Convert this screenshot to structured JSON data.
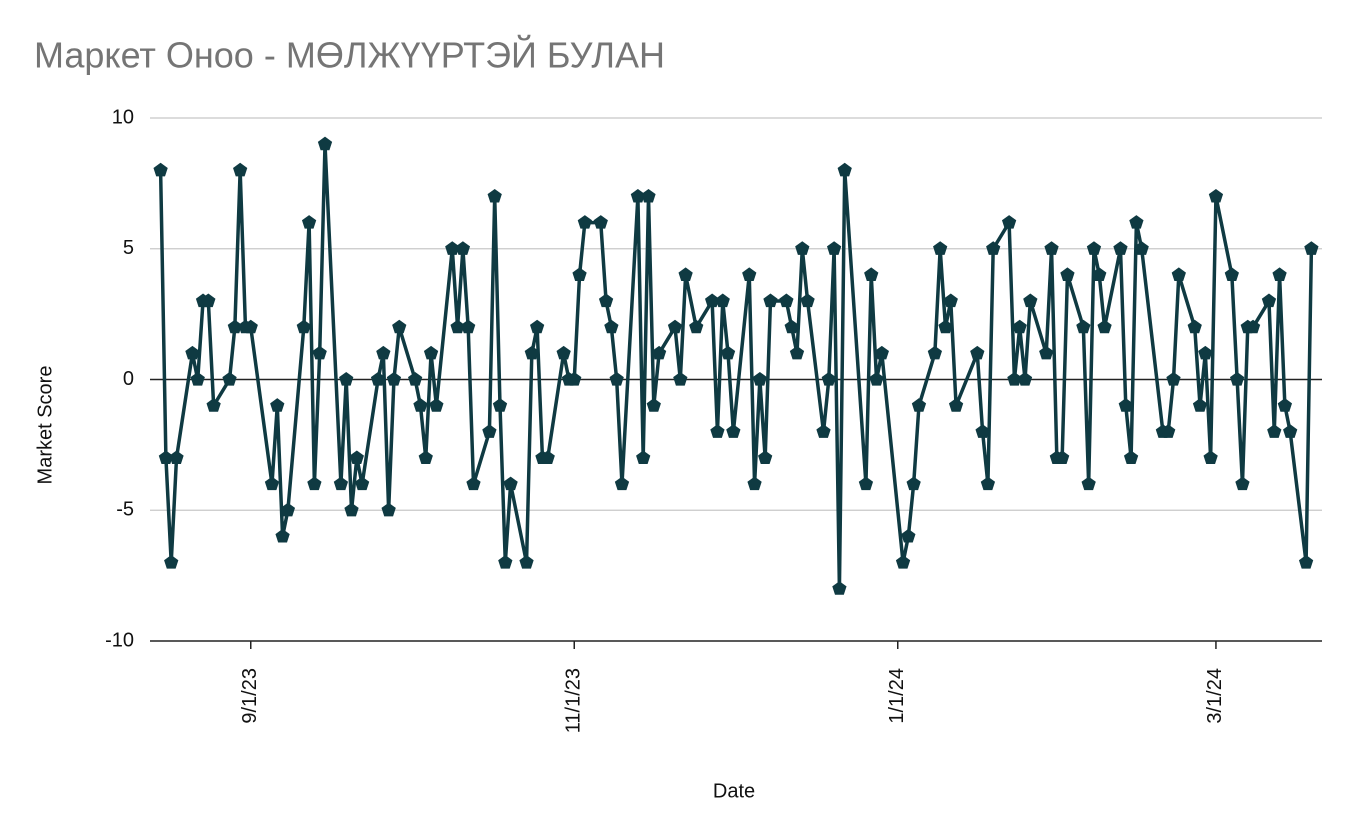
{
  "chart_data": {
    "type": "line",
    "title": "Маркет Оноо - МӨЛЖҮҮРТЭЙ БУЛАН",
    "x_label": "Date",
    "y_label": "Market Score",
    "color": "#0f3a42",
    "x": [
      "8/15/23",
      "8/16/23",
      "8/17/23",
      "8/18/23",
      "8/21/23",
      "8/22/23",
      "8/23/23",
      "8/24/23",
      "8/25/23",
      "8/28/23",
      "8/29/23",
      "8/30/23",
      "8/31/23",
      "9/1/23",
      "9/5/23",
      "9/6/23",
      "9/7/23",
      "9/8/23",
      "9/11/23",
      "9/12/23",
      "9/13/23",
      "9/14/23",
      "9/15/23",
      "9/18/23",
      "9/19/23",
      "9/20/23",
      "9/21/23",
      "9/22/23",
      "9/25/23",
      "9/26/23",
      "9/27/23",
      "9/28/23",
      "9/29/23",
      "10/2/23",
      "10/3/23",
      "10/4/23",
      "10/5/23",
      "10/6/23",
      "10/9/23",
      "10/10/23",
      "10/11/23",
      "10/12/23",
      "10/13/23",
      "10/16/23",
      "10/17/23",
      "10/18/23",
      "10/19/23",
      "10/20/23",
      "10/23/23",
      "10/24/23",
      "10/25/23",
      "10/26/23",
      "10/27/23",
      "10/30/23",
      "10/31/23",
      "11/1/23",
      "11/2/23",
      "11/3/23",
      "11/6/23",
      "11/7/23",
      "11/8/23",
      "11/9/23",
      "11/10/23",
      "11/13/23",
      "11/14/23",
      "11/15/23",
      "11/16/23",
      "11/17/23",
      "11/20/23",
      "11/21/23",
      "11/22/23",
      "11/24/23",
      "11/27/23",
      "11/28/23",
      "11/29/23",
      "11/30/23",
      "12/1/23",
      "12/4/23",
      "12/5/23",
      "12/6/23",
      "12/7/23",
      "12/8/23",
      "12/11/23",
      "12/12/23",
      "12/13/23",
      "12/14/23",
      "12/15/23",
      "12/18/23",
      "12/19/23",
      "12/20/23",
      "12/21/23",
      "12/22/23",
      "12/26/23",
      "12/27/23",
      "12/28/23",
      "12/29/23",
      "1/2/24",
      "1/3/24",
      "1/4/24",
      "1/5/24",
      "1/8/24",
      "1/9/24",
      "1/10/24",
      "1/11/24",
      "1/12/24",
      "1/16/24",
      "1/17/24",
      "1/18/24",
      "1/19/24",
      "1/22/24",
      "1/23/24",
      "1/24/24",
      "1/25/24",
      "1/26/24",
      "1/29/24",
      "1/30/24",
      "1/31/24",
      "2/1/24",
      "2/2/24",
      "2/5/24",
      "2/6/24",
      "2/7/24",
      "2/8/24",
      "2/9/24",
      "2/12/24",
      "2/13/24",
      "2/14/24",
      "2/15/24",
      "2/16/24",
      "2/20/24",
      "2/21/24",
      "2/22/24",
      "2/23/24",
      "2/26/24",
      "2/27/24",
      "2/28/24",
      "2/29/24",
      "3/1/24",
      "3/4/24",
      "3/5/24",
      "3/6/24",
      "3/7/24",
      "3/8/24",
      "3/11/24",
      "3/12/24",
      "3/13/24",
      "3/14/24",
      "3/15/24",
      "3/18/24",
      "3/19/24"
    ],
    "values": [
      8,
      -3,
      -7,
      -3,
      1,
      0,
      3,
      3,
      -1,
      0,
      2,
      8,
      2,
      2,
      -4,
      -1,
      -6,
      -5,
      2,
      6,
      -4,
      1,
      9,
      -4,
      0,
      -5,
      -3,
      -4,
      0,
      1,
      -5,
      0,
      2,
      0,
      -1,
      -3,
      1,
      -1,
      5,
      2,
      5,
      2,
      -4,
      -2,
      7,
      -1,
      -7,
      -4,
      -7,
      1,
      2,
      -3,
      -3,
      1,
      0,
      0,
      4,
      6,
      6,
      3,
      2,
      0,
      -4,
      7,
      -3,
      7,
      -1,
      1,
      2,
      0,
      4,
      2,
      3,
      -2,
      3,
      1,
      -2,
      4,
      -4,
      0,
      -3,
      3,
      3,
      2,
      1,
      5,
      3,
      -2,
      0,
      5,
      -8,
      8,
      -4,
      4,
      0,
      1,
      -7,
      -6,
      -4,
      -1,
      1,
      5,
      2,
      3,
      -1,
      1,
      -2,
      -4,
      5,
      6,
      0,
      2,
      0,
      3,
      1,
      5,
      -3,
      -3,
      4,
      2,
      -4,
      5,
      4,
      2,
      5,
      -1,
      -3,
      6,
      5,
      -2,
      -2,
      0,
      4,
      2,
      -1,
      1,
      -3,
      7,
      4,
      0,
      -4,
      2,
      2,
      3,
      -2,
      4,
      -1,
      -2,
      -7,
      5
    ],
    "xlim": [
      "8/13/23",
      "3/21/24"
    ],
    "xticks": [
      "9/1/23",
      "11/1/23",
      "1/1/24",
      "3/1/24"
    ],
    "ylim": [
      -10,
      10
    ],
    "yticks": [
      10,
      5,
      0,
      -5,
      -10
    ],
    "grid": true
  }
}
